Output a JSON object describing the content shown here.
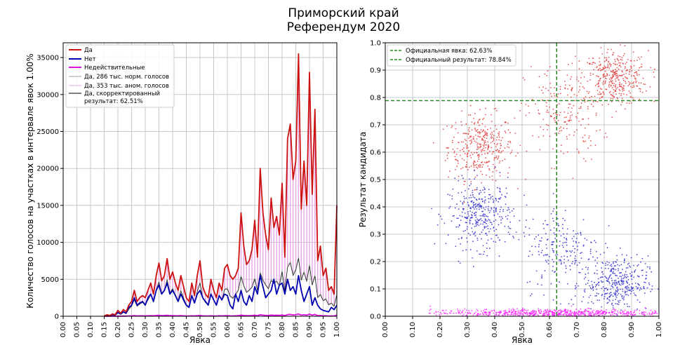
{
  "title": "Приморский край",
  "subtitle": "Референдум 2020",
  "colors": {
    "yes": "#cc1111",
    "no": "#0000b0",
    "invalid": "#e010e0",
    "yes_norm": "#a0a0a0",
    "yes_anom": "#e7a7e7",
    "corrected": "#000000",
    "official": "#2a8a2a",
    "scatter_yes": "#e03a3a",
    "scatter_no": "#2a2ad0",
    "scatter_inv": "#ff22ff"
  },
  "chart_data": [
    {
      "type": "line",
      "xlabel": "Явка",
      "ylabel": "Количество голосов на участках в интервале явок 1.00%",
      "xlim": [
        0,
        1
      ],
      "ylim": [
        0,
        37000
      ],
      "xticks": [
        "0.00",
        "0.05",
        "0.10",
        "0.15",
        "0.20",
        "0.25",
        "0.30",
        "0.35",
        "0.40",
        "0.45",
        "0.50",
        "0.55",
        "0.60",
        "0.65",
        "0.70",
        "0.75",
        "0.80",
        "0.85",
        "0.90",
        "0.95",
        "1.00"
      ],
      "yticks": [
        "0",
        "5000",
        "10000",
        "15000",
        "20000",
        "25000",
        "30000",
        "35000"
      ],
      "grid": true,
      "legend_position": "top-left",
      "legend": {
        "yes": "Да",
        "no": "Нет",
        "invalid": "Недействительные",
        "yes_norm": "Да, 286 тыс. норм. голосов",
        "yes_anom": "Да, 353 тыс. аном. голосов",
        "corrected": "Да, скорректированный результат: 62.51%"
      },
      "x": [
        0.15,
        0.16,
        0.17,
        0.18,
        0.19,
        0.2,
        0.21,
        0.22,
        0.23,
        0.24,
        0.25,
        0.26,
        0.27,
        0.28,
        0.29,
        0.3,
        0.31,
        0.32,
        0.33,
        0.34,
        0.35,
        0.36,
        0.37,
        0.38,
        0.39,
        0.4,
        0.41,
        0.42,
        0.43,
        0.44,
        0.45,
        0.46,
        0.47,
        0.48,
        0.49,
        0.5,
        0.51,
        0.52,
        0.53,
        0.54,
        0.55,
        0.56,
        0.57,
        0.58,
        0.59,
        0.6,
        0.61,
        0.62,
        0.63,
        0.64,
        0.65,
        0.66,
        0.67,
        0.68,
        0.69,
        0.7,
        0.71,
        0.72,
        0.73,
        0.74,
        0.75,
        0.76,
        0.77,
        0.78,
        0.79,
        0.8,
        0.81,
        0.82,
        0.83,
        0.84,
        0.85,
        0.86,
        0.87,
        0.88,
        0.89,
        0.9,
        0.91,
        0.92,
        0.93,
        0.94,
        0.95,
        0.96,
        0.97,
        0.98,
        0.99,
        1.0
      ],
      "series": [
        {
          "name": "Да",
          "values": [
            50,
            200,
            100,
            300,
            200,
            800,
            400,
            900,
            600,
            1500,
            2000,
            3500,
            2000,
            2500,
            2800,
            2500,
            3500,
            4500,
            3000,
            5500,
            7200,
            4800,
            5500,
            7800,
            5000,
            6000,
            4500,
            3500,
            5500,
            4000,
            2500,
            2000,
            4500,
            2800,
            5500,
            7500,
            4000,
            3000,
            2500,
            5000,
            3500,
            2500,
            4500,
            3500,
            6500,
            7000,
            5500,
            5000,
            5500,
            6500,
            14000,
            9500,
            7000,
            7500,
            9000,
            13000,
            8000,
            20000,
            14000,
            11000,
            9000,
            16000,
            12000,
            13500,
            11000,
            18000,
            8000,
            24000,
            26000,
            18500,
            21000,
            35500,
            14500,
            21000,
            15000,
            33000,
            16500,
            28000,
            7500,
            9500,
            5500,
            6500,
            3500,
            4000,
            3000,
            15000
          ]
        },
        {
          "name": "Нет",
          "values": [
            20,
            150,
            80,
            200,
            150,
            500,
            300,
            600,
            400,
            1200,
            1500,
            2500,
            1500,
            1800,
            2000,
            1500,
            2500,
            3000,
            2000,
            3500,
            4200,
            3000,
            3500,
            4500,
            3000,
            3500,
            2800,
            2000,
            3000,
            2200,
            1500,
            1200,
            2800,
            1800,
            3000,
            3500,
            2500,
            2000,
            1500,
            3000,
            2200,
            1500,
            2800,
            2200,
            3000,
            2800,
            1500,
            1000,
            3000,
            2000,
            3500,
            2000,
            1500,
            2800,
            2000,
            4000,
            3000,
            5500,
            4000,
            2500,
            3000,
            3500,
            5000,
            3000,
            4200,
            4500,
            3000,
            5000,
            3500,
            4000,
            3000,
            5500,
            3500,
            2000,
            3000,
            4000,
            1500,
            2500,
            1500,
            1000,
            800,
            700,
            600,
            1200,
            900,
            1500
          ]
        },
        {
          "name": "Недействительные",
          "values": [
            0,
            0,
            0,
            0,
            0,
            20,
            10,
            30,
            20,
            50,
            50,
            80,
            50,
            60,
            60,
            50,
            70,
            90,
            60,
            100,
            120,
            90,
            100,
            130,
            80,
            90,
            70,
            60,
            80,
            60,
            40,
            40,
            70,
            50,
            80,
            100,
            60,
            50,
            40,
            70,
            50,
            40,
            70,
            50,
            80,
            90,
            60,
            50,
            70,
            80,
            150,
            100,
            80,
            80,
            100,
            140,
            90,
            200,
            150,
            110,
            100,
            160,
            130,
            140,
            110,
            180,
            90,
            220,
            250,
            180,
            200,
            300,
            150,
            200,
            150,
            280,
            150,
            250,
            80,
            100,
            60,
            70,
            40,
            50,
            40,
            150
          ]
        },
        {
          "name": "Да, 286 тыс. норм. голосов",
          "values": [
            30,
            120,
            60,
            180,
            120,
            500,
            250,
            550,
            380,
            1000,
            1400,
            2300,
            1400,
            1700,
            1900,
            1600,
            2300,
            3000,
            2000,
            3600,
            4700,
            3100,
            3600,
            5000,
            3200,
            3800,
            2900,
            2200,
            3500,
            2500,
            1600,
            1300,
            2800,
            1800,
            3400,
            4600,
            2500,
            1900,
            1600,
            3100,
            2200,
            1600,
            2800,
            2200,
            3700,
            3800,
            2800,
            2500,
            3000,
            3600,
            5500,
            4200,
            3300,
            3600,
            4000,
            5200,
            3600,
            6000,
            5000,
            4300,
            3800,
            5000,
            4600,
            4800,
            4200,
            6200,
            3500,
            6800,
            7400,
            5700,
            6400,
            8000,
            5000,
            6100,
            4800,
            7000,
            4300,
            5600,
            2600,
            3000,
            2200,
            2400,
            1600,
            1800,
            1400,
            3000
          ]
        }
      ],
      "corrected_values": [
        25,
        110,
        55,
        170,
        110,
        480,
        240,
        530,
        360,
        960,
        1350,
        2200,
        1350,
        1650,
        1850,
        1550,
        2200,
        2900,
        1900,
        3500,
        4600,
        3000,
        3500,
        4900,
        3100,
        3700,
        2800,
        2100,
        3400,
        2400,
        1550,
        1250,
        2700,
        1750,
        3300,
        4500,
        2400,
        1850,
        1550,
        3000,
        2150,
        1550,
        2700,
        2150,
        3600,
        3700,
        2700,
        2400,
        2900,
        3500,
        5300,
        4100,
        3200,
        3500,
        3900,
        5000,
        3500,
        5800,
        4800,
        4200,
        3700,
        4800,
        4500,
        4700,
        4100,
        6000,
        3400,
        6600,
        7200,
        5500,
        6200,
        7800,
        4900,
        5900,
        4700,
        6800,
        4200,
        5400,
        2500,
        2900,
        2100,
        2300,
        1550,
        1750,
        1350,
        2900
      ]
    },
    {
      "type": "scatter",
      "xlabel": "Явка",
      "ylabel": "Результат кандидата",
      "xlim": [
        0,
        1
      ],
      "ylim": [
        0,
        1
      ],
      "xticks": [
        "0.00",
        "0.10",
        "0.20",
        "0.30",
        "0.40",
        "0.50",
        "0.60",
        "0.70",
        "0.80",
        "0.90",
        "1.00"
      ],
      "yticks": [
        "0.0",
        "0.1",
        "0.2",
        "0.3",
        "0.4",
        "0.5",
        "0.6",
        "0.7",
        "0.8",
        "0.9",
        "1.0"
      ],
      "grid": true,
      "legend_position": "top-left",
      "legend": {
        "turnout": "Официальная явка: 62.63%",
        "result": "Официальный результат: 78.84%"
      },
      "official_turnout": 0.6263,
      "official_result": 0.7884,
      "clusters": [
        {
          "series": "Да",
          "cx": 0.35,
          "cy": 0.62,
          "sx": 0.06,
          "sy": 0.06,
          "n": 360
        },
        {
          "series": "Да",
          "cx": 0.84,
          "cy": 0.87,
          "sx": 0.06,
          "sy": 0.05,
          "n": 380
        },
        {
          "series": "Да",
          "cx": 0.65,
          "cy": 0.74,
          "sx": 0.07,
          "sy": 0.09,
          "n": 200
        },
        {
          "series": "Нет",
          "cx": 0.35,
          "cy": 0.37,
          "sx": 0.06,
          "sy": 0.06,
          "n": 360
        },
        {
          "series": "Нет",
          "cx": 0.84,
          "cy": 0.12,
          "sx": 0.06,
          "sy": 0.05,
          "n": 380
        },
        {
          "series": "Нет",
          "cx": 0.65,
          "cy": 0.25,
          "sx": 0.07,
          "sy": 0.08,
          "n": 200
        },
        {
          "series": "Недействительные",
          "cx": 0.6,
          "cy": 0.012,
          "sx": 0.22,
          "sy": 0.007,
          "n": 700
        }
      ]
    }
  ]
}
